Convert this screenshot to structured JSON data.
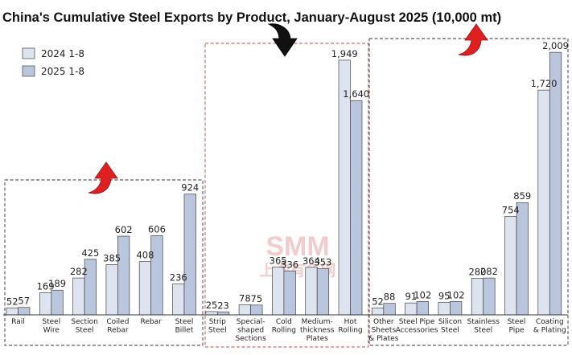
{
  "chart_data": {
    "type": "bar",
    "title": "China's Cumulative Steel Exports by Product, January-August 2025 (10,000 mt)",
    "series": [
      {
        "name": "2024 1-8",
        "color": "#dde3ef",
        "values": [
          52,
          169,
          282,
          385,
          408,
          236,
          25,
          78,
          365,
          364,
          1949,
          52,
          91,
          95,
          280,
          754,
          1720
        ]
      },
      {
        "name": "2025 1-8",
        "color": "#b9c6dd",
        "values": [
          57,
          189,
          425,
          602,
          606,
          924,
          23,
          75,
          336,
          353,
          1640,
          88,
          102,
          102,
          282,
          859,
          2009
        ]
      }
    ],
    "categories": [
      "Rail",
      "Steel\nWire",
      "Section\nSteel",
      "Coiled\nRebar",
      "Rebar",
      "Steel\nBillet",
      "Strip\nSteel",
      "Special-\nshaped\nSections",
      "Cold\nRolling",
      "Medium-\nthickness\nPlates",
      "Hot\nRolling",
      "Other\nSheets\n& Plates",
      "Steel Pipe\nAccessories",
      "Silicon\nSteel",
      "Stainless\nSteel",
      "Steel\nPipe",
      "Coating\n& Plating"
    ],
    "value_labels_2024": [
      "52",
      "169",
      "282",
      "385",
      "408",
      "236",
      "25",
      "78",
      "365",
      "364",
      "1,949",
      "52",
      "91",
      "95",
      "280",
      "754",
      "1,720"
    ],
    "value_labels_2025": [
      "57",
      "189",
      "425",
      "602",
      "606",
      "924",
      "23",
      "75",
      "336",
      "353",
      "1,640",
      "88",
      "102",
      "102",
      "282",
      "859",
      "2,009"
    ],
    "groups": [
      {
        "categories": [
          0,
          5
        ],
        "trend": "up",
        "trend_color": "#e02020",
        "border": "#333333"
      },
      {
        "categories": [
          6,
          10
        ],
        "trend": "down",
        "trend_color": "#111111",
        "border": "#d04040"
      },
      {
        "categories": [
          11,
          16
        ],
        "trend": "up",
        "trend_color": "#e02020",
        "border": "#333333"
      }
    ],
    "legend_position": "top-left",
    "ylim": [
      0,
      2100
    ],
    "grid": false
  },
  "watermark": {
    "line1": "SMM",
    "line2": "上海有色网"
  }
}
